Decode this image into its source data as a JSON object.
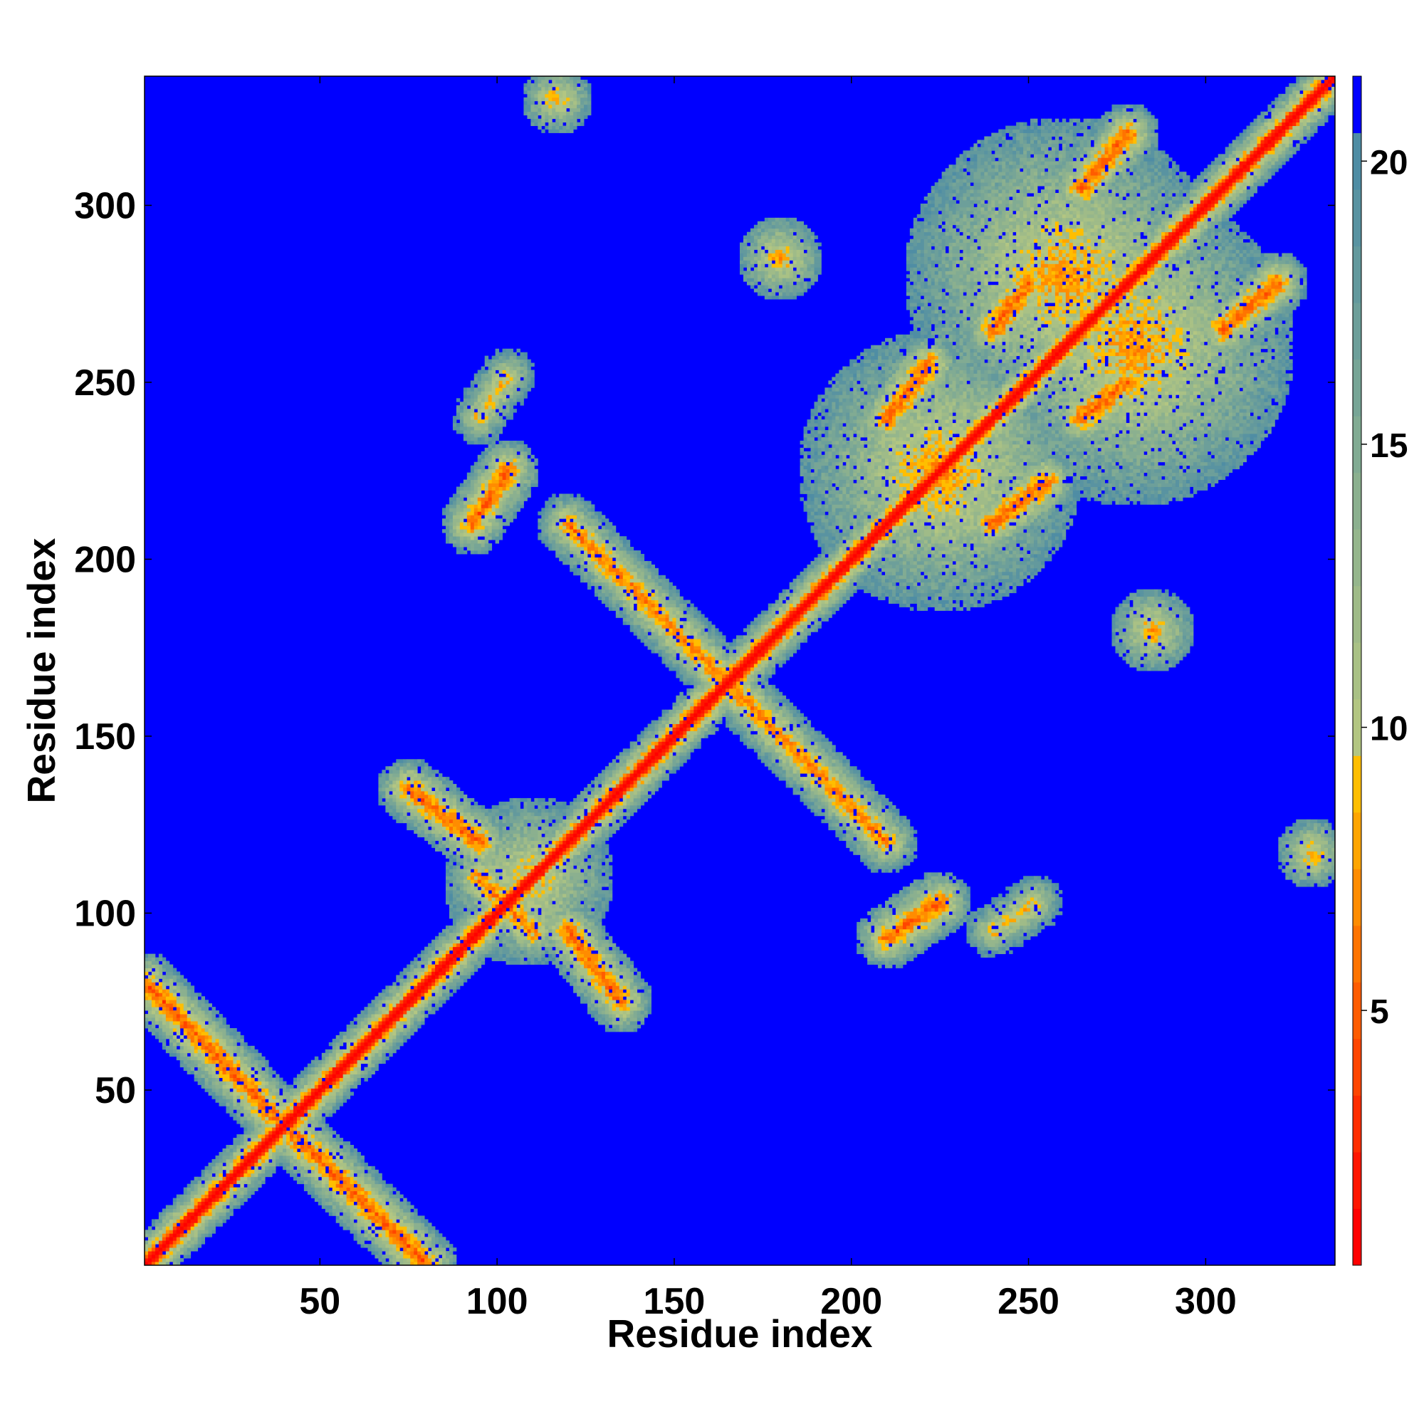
{
  "chart_data": {
    "type": "heatmap",
    "description_kind": "residue contact / distance map",
    "xlabel": "Residue index",
    "ylabel": "Residue index",
    "xlim": [
      1,
      336
    ],
    "ylim": [
      1,
      336
    ],
    "x_ticks": [
      50,
      100,
      150,
      200,
      250,
      300
    ],
    "y_ticks": [
      50,
      100,
      150,
      200,
      250,
      300
    ],
    "x_tick_labels": [
      "50",
      "100",
      "150",
      "200",
      "250",
      "300"
    ],
    "y_tick_labels": [
      "50",
      "100",
      "150",
      "200",
      "250",
      "300"
    ],
    "colorbar": {
      "range": [
        0.5,
        21.5
      ],
      "ticks": [
        5,
        10,
        15,
        20
      ],
      "tick_labels": [
        "5",
        "10",
        "15",
        "20"
      ],
      "colors": [
        "#ff0000",
        "#ff1500",
        "#ff2d00",
        "#ff4500",
        "#ff5c00",
        "#ff7400",
        "#ff8c00",
        "#ffa500",
        "#ffbe00",
        "#b3c682",
        "#a9c185",
        "#9fbb88",
        "#95b68c",
        "#8bb08f",
        "#81ab93",
        "#77a596",
        "#6d9f9a",
        "#63999d",
        "#5993a1",
        "#4f8da4",
        "#0000ff"
      ],
      "color_meaning": "red = short distance, green/grey-teal = intermediate, blue = beyond cutoff"
    },
    "background_color": "#0000ff",
    "features": [
      {
        "kind": "diagonal band",
        "from": [
          1,
          1
        ],
        "to": [
          336,
          336
        ],
        "min_value": 1
      },
      {
        "kind": "antiparallel band",
        "from": [
          1,
          78
        ],
        "to": [
          80,
          1
        ],
        "min_value": 5
      },
      {
        "kind": "antiparallel band",
        "from": [
          120,
          210
        ],
        "to": [
          210,
          120
        ],
        "min_value": 6
      },
      {
        "kind": "parallel band",
        "from": [
          80,
          123
        ],
        "to": [
          110,
          95
        ],
        "min_value": 6
      },
      {
        "kind": "parallel band",
        "from": [
          120,
          95
        ],
        "to": [
          135,
          75
        ],
        "min_value": 5
      },
      {
        "kind": "contact cluster",
        "center": [
          108,
          110
        ],
        "radius": 25
      },
      {
        "kind": "antiparallel band",
        "from": [
          90,
          180
        ],
        "to": [
          100,
          240
        ],
        "min_value": 6
      },
      {
        "kind": "parallel band",
        "from": [
          95,
          212
        ],
        "to": [
          110,
          225
        ],
        "min_value": 5
      },
      {
        "kind": "contact cluster",
        "center": [
          225,
          225
        ],
        "radius": 40
      },
      {
        "kind": "contact cluster",
        "center": [
          280,
          260
        ],
        "radius": 45
      },
      {
        "kind": "parallel band",
        "from": [
          210,
          93
        ],
        "to": [
          225,
          103
        ],
        "min_value": 5
      },
      {
        "kind": "parallel band",
        "from": [
          240,
          95
        ],
        "to": [
          252,
          103
        ],
        "min_value": 8
      },
      {
        "kind": "parallel band",
        "from": [
          305,
          265
        ],
        "to": [
          320,
          278
        ],
        "min_value": 5
      },
      {
        "kind": "parallel band",
        "from": [
          265,
          240
        ],
        "to": [
          278,
          250
        ],
        "min_value": 5
      },
      {
        "kind": "parallel band",
        "from": [
          240,
          210
        ],
        "to": [
          255,
          222
        ],
        "min_value": 5
      },
      {
        "kind": "parallel band",
        "from": [
          215,
          240
        ],
        "to": [
          228,
          252
        ],
        "min_value": 5
      },
      {
        "kind": "contact cluster",
        "center": [
          185,
          285
        ],
        "radius": 12
      },
      {
        "kind": "contact cluster",
        "center": [
          285,
          180
        ],
        "radius": 12
      },
      {
        "kind": "contact cluster",
        "center": [
          330,
          117
        ],
        "radius": 10
      },
      {
        "kind": "contact cluster",
        "center": [
          115,
          330
        ],
        "radius": 10
      }
    ]
  }
}
